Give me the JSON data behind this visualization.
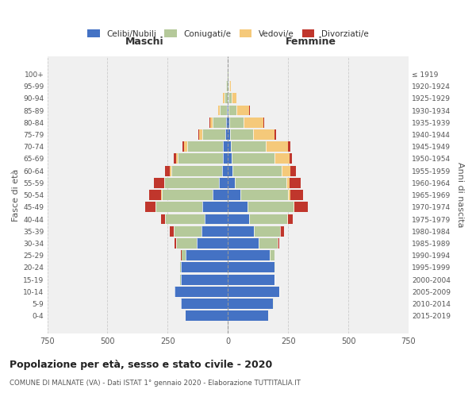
{
  "age_groups": [
    "0-4",
    "5-9",
    "10-14",
    "15-19",
    "20-24",
    "25-29",
    "30-34",
    "35-39",
    "40-44",
    "45-49",
    "50-54",
    "55-59",
    "60-64",
    "65-69",
    "70-74",
    "75-79",
    "80-84",
    "85-89",
    "90-94",
    "95-99",
    "100+"
  ],
  "birth_years": [
    "2015-2019",
    "2010-2014",
    "2005-2009",
    "2000-2004",
    "1995-1999",
    "1990-1994",
    "1985-1989",
    "1980-1984",
    "1975-1979",
    "1970-1974",
    "1965-1969",
    "1960-1964",
    "1955-1959",
    "1950-1954",
    "1945-1949",
    "1940-1944",
    "1935-1939",
    "1930-1934",
    "1925-1929",
    "1920-1924",
    "≤ 1919"
  ],
  "male_celibi": [
    175,
    195,
    220,
    195,
    195,
    175,
    130,
    110,
    95,
    105,
    65,
    38,
    25,
    22,
    20,
    12,
    8,
    5,
    2,
    2,
    0
  ],
  "male_coniugati": [
    0,
    1,
    3,
    2,
    5,
    18,
    85,
    115,
    165,
    195,
    210,
    225,
    210,
    185,
    150,
    95,
    55,
    28,
    12,
    4,
    2
  ],
  "male_vedovi": [
    0,
    0,
    0,
    0,
    0,
    0,
    1,
    1,
    2,
    2,
    2,
    3,
    5,
    8,
    12,
    12,
    10,
    8,
    5,
    2,
    0
  ],
  "male_divorziati": [
    0,
    0,
    0,
    0,
    0,
    2,
    5,
    15,
    15,
    40,
    50,
    40,
    20,
    10,
    8,
    3,
    2,
    0,
    0,
    0,
    0
  ],
  "female_nubili": [
    168,
    188,
    212,
    192,
    192,
    175,
    128,
    108,
    88,
    80,
    52,
    30,
    20,
    15,
    12,
    8,
    5,
    4,
    3,
    2,
    0
  ],
  "female_coniugate": [
    0,
    1,
    2,
    2,
    4,
    18,
    78,
    108,
    158,
    192,
    198,
    212,
    202,
    178,
    145,
    95,
    60,
    30,
    12,
    5,
    2
  ],
  "female_vedove": [
    0,
    0,
    0,
    0,
    0,
    0,
    1,
    2,
    3,
    5,
    8,
    15,
    36,
    62,
    92,
    92,
    82,
    55,
    22,
    6,
    2
  ],
  "female_divorziate": [
    0,
    0,
    0,
    0,
    0,
    2,
    5,
    15,
    20,
    55,
    55,
    45,
    25,
    10,
    10,
    5,
    3,
    2,
    0,
    0,
    0
  ],
  "colors": {
    "celibi_nubili": "#4472c4",
    "coniugati_e": "#b5c99a",
    "vedovi_e": "#f5c97a",
    "divorziati_e": "#c0362c"
  },
  "title": "Popolazione per età, sesso e stato civile - 2020",
  "subtitle": "COMUNE DI MALNATE (VA) - Dati ISTAT 1° gennaio 2020 - Elaborazione TUTTITALIA.IT",
  "xlabel_left": "Maschi",
  "xlabel_right": "Femmine",
  "ylabel_left": "Fasce di età",
  "ylabel_right": "Anni di nascita",
  "xlim": 750,
  "bg_color": "#f0f0f0",
  "grid_color": "#cccccc",
  "legend_labels": [
    "Celibi/Nubili",
    "Coniugati/e",
    "Vedovi/e",
    "Divorziati/e"
  ]
}
